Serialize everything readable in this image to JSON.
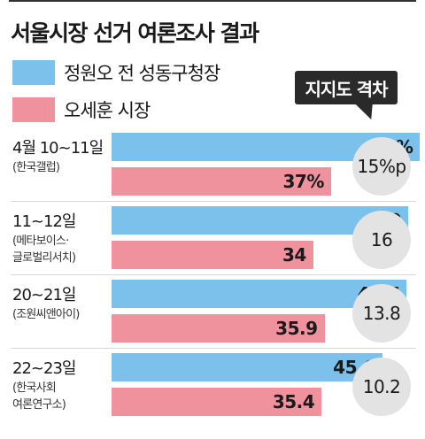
{
  "title": "서울시장 선거 여론조사 결과",
  "legend": [
    {
      "label": "정원오 전 성동구청장",
      "color": "#7cc0ec"
    },
    {
      "label": "오세훈 시장",
      "color": "#f0919e"
    }
  ],
  "gap_title": "지지도 격차",
  "groups": [
    {
      "period": "4월 10~11일",
      "source_lines": [
        "(한국갤럽)"
      ],
      "gap_label": "15%p"
    },
    {
      "period": "11~12일",
      "source_lines": [
        "(메타보이스·",
        "글로벌리서치)"
      ],
      "gap_label": "16"
    },
    {
      "period": "20~21일",
      "source_lines": [
        "(조원씨앤아이)"
      ],
      "gap_label": "13.8"
    },
    {
      "period": "22~23일",
      "source_lines": [
        "(한국사회",
        "여론연구소)"
      ],
      "gap_label": "10.2"
    }
  ],
  "chart_data": {
    "type": "bar",
    "orientation": "horizontal",
    "title": "서울시장 선거 여론조사 결과",
    "categories": [
      "4월 10~11일",
      "11~12일",
      "20~21일",
      "22~23일"
    ],
    "series": [
      {
        "name": "정원오 전 성동구청장",
        "color": "#7cc0ec",
        "values": [
          52,
          50,
          49.7,
          45.6
        ],
        "labels": [
          "52%",
          "50",
          "49.7",
          "45.6"
        ]
      },
      {
        "name": "오세훈 시장",
        "color": "#f0919e",
        "values": [
          37,
          34,
          35.9,
          35.4
        ],
        "labels": [
          "37%",
          "34",
          "35.9",
          "35.4"
        ]
      }
    ],
    "gap": [
      15,
      16,
      13.8,
      10.2
    ],
    "xlim": [
      0,
      60
    ]
  }
}
